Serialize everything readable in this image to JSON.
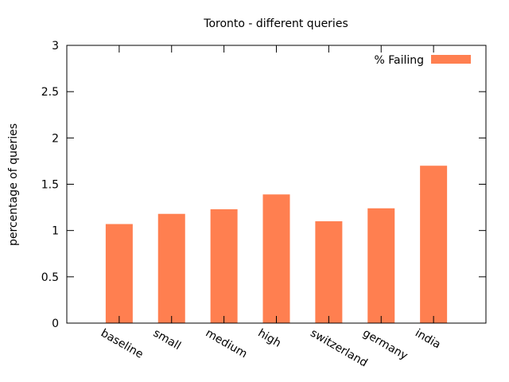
{
  "chart_data": {
    "type": "bar",
    "title": "Toronto - different queries",
    "xlabel": "",
    "ylabel": "percentage of queries",
    "categories": [
      "baseline",
      "small",
      "medium",
      "high",
      "switzerland",
      "germany",
      "india"
    ],
    "series": [
      {
        "name": "% Failing",
        "color": "#ff7f50",
        "values": [
          1.07,
          1.18,
          1.23,
          1.39,
          1.1,
          1.24,
          1.7
        ]
      }
    ],
    "ylim": [
      0,
      3
    ],
    "yticks": [
      "0",
      "0.5",
      "1",
      "1.5",
      "2",
      "2.5",
      "3"
    ],
    "grid": false,
    "legend_position": "top-right"
  }
}
